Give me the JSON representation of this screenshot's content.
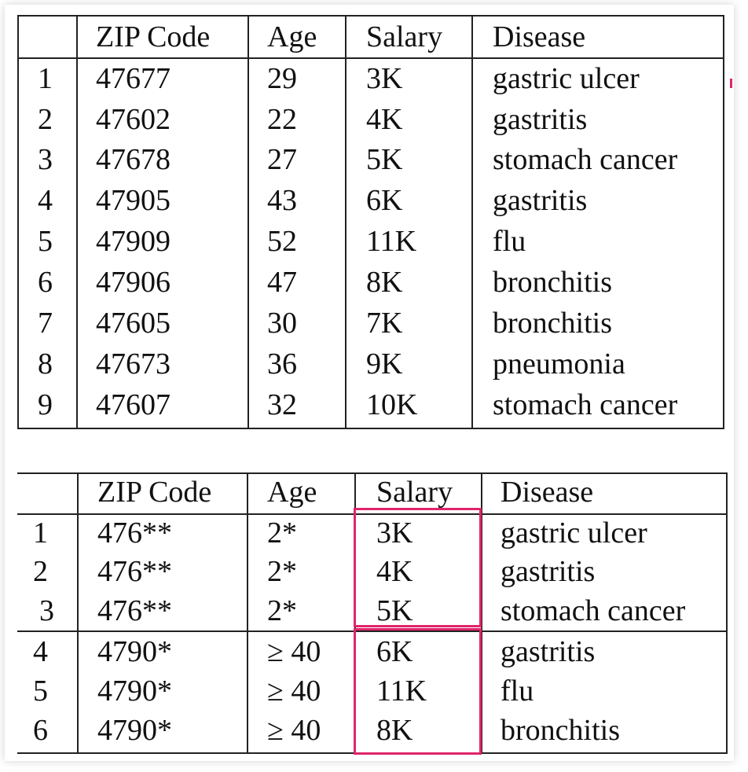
{
  "table1": {
    "headers": [
      "",
      "ZIP Code",
      "Age",
      "Salary",
      "Disease"
    ],
    "rows": [
      [
        "1",
        "47677",
        "29",
        "3K",
        "gastric ulcer"
      ],
      [
        "2",
        "47602",
        "22",
        "4K",
        "gastritis"
      ],
      [
        "3",
        "47678",
        "27",
        "5K",
        "stomach cancer"
      ],
      [
        "4",
        "47905",
        "43",
        "6K",
        "gastritis"
      ],
      [
        "5",
        "47909",
        "52",
        "11K",
        "flu"
      ],
      [
        "6",
        "47906",
        "47",
        "8K",
        "bronchitis"
      ],
      [
        "7",
        "47605",
        "30",
        "7K",
        "bronchitis"
      ],
      [
        "8",
        "47673",
        "36",
        "9K",
        "pneumonia"
      ],
      [
        "9",
        "47607",
        "32",
        "10K",
        "stomach cancer"
      ]
    ]
  },
  "table2": {
    "headers": [
      "",
      "ZIP Code",
      "Age",
      "Salary",
      "Disease"
    ],
    "rows": [
      [
        "1",
        "476**",
        "2*",
        "3K",
        "gastric ulcer"
      ],
      [
        "2",
        "476**",
        "2*",
        "4K",
        "gastritis"
      ],
      [
        "3",
        "476**",
        "2*",
        "5K",
        "stomach cancer"
      ],
      [
        "4",
        "4790*",
        "≥ 40",
        "6K",
        "gastritis"
      ],
      [
        "5",
        "4790*",
        "≥ 40",
        "11K",
        "flu"
      ],
      [
        "6",
        "4790*",
        "≥ 40",
        "8K",
        "bronchitis"
      ]
    ]
  },
  "colors": {
    "highlight": "#e0246b",
    "rule": "#222222"
  }
}
